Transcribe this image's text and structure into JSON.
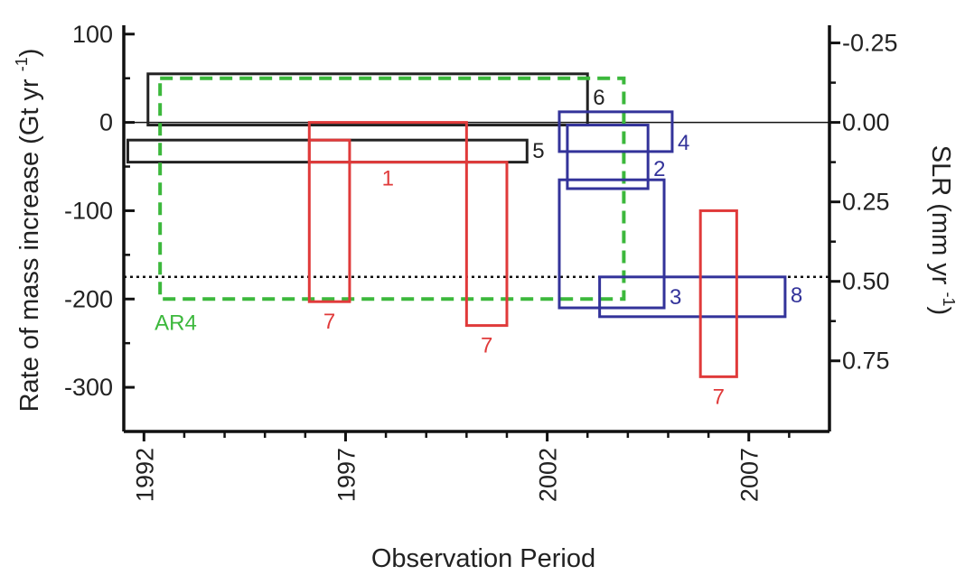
{
  "chart_data": {
    "type": "box",
    "xlabel": "Observation Period",
    "ylabel_left": "Rate of mass increase (Gt yr -1)",
    "ylabel_right": "SLR (mm yr -1)",
    "xlim": [
      1991.5,
      2009
    ],
    "ylim": [
      -350,
      110
    ],
    "x_ticks": [
      {
        "value": 1992,
        "label": "1992"
      },
      {
        "value": 1997,
        "label": "1997"
      },
      {
        "value": 2002,
        "label": "2002"
      },
      {
        "value": 2007,
        "label": "2007"
      }
    ],
    "y_ticks_left": [
      {
        "value": 100,
        "label": "100"
      },
      {
        "value": 0,
        "label": "0"
      },
      {
        "value": -100,
        "label": "-100"
      },
      {
        "value": -200,
        "label": "-200"
      },
      {
        "value": -300,
        "label": "-300"
      }
    ],
    "y_ticks_right": [
      {
        "value": 90,
        "label": "-0.25"
      },
      {
        "value": 0,
        "label": "0.00"
      },
      {
        "value": -90,
        "label": "0.25"
      },
      {
        "value": -180,
        "label": "0.50"
      },
      {
        "value": -270,
        "label": "0.75"
      }
    ],
    "reference_lines": [
      {
        "y": 0,
        "style": "solid"
      },
      {
        "y": -175,
        "style": "dotted"
      }
    ],
    "colors": {
      "black": "#222222",
      "red": "#e03a3a",
      "blue": "#33339a",
      "green": "#3cb83c"
    },
    "boxes": [
      {
        "id": "6",
        "label": "6",
        "color": "black",
        "x0": 1992.1,
        "x1": 2003.0,
        "y0": 55,
        "y1": -3,
        "label_side": "right"
      },
      {
        "id": "5",
        "label": "5",
        "color": "black",
        "x0": 1991.6,
        "x1": 2001.5,
        "y0": -20,
        "y1": -45,
        "label_side": "right"
      },
      {
        "id": "AR4",
        "label": "AR4",
        "color": "green",
        "dashed": true,
        "x0": 1992.4,
        "x1": 2003.9,
        "y0": 50,
        "y1": -200,
        "label_side": "below-left"
      },
      {
        "id": "1",
        "label": "1",
        "color": "red",
        "x0": 1996.1,
        "x1": 2000.0,
        "y0": 0,
        "y1": -45,
        "label_side": "below-center"
      },
      {
        "id": "7a",
        "label": "7",
        "color": "red",
        "x0": 1996.1,
        "x1": 1997.1,
        "y0": -20,
        "y1": -203,
        "label_side": "below"
      },
      {
        "id": "7b",
        "label": "7",
        "color": "red",
        "x0": 2000.0,
        "x1": 2001.0,
        "y0": -45,
        "y1": -230,
        "label_side": "below"
      },
      {
        "id": "4",
        "label": "4",
        "color": "blue",
        "x0": 2002.3,
        "x1": 2005.1,
        "y0": 12,
        "y1": -33,
        "label_side": "right"
      },
      {
        "id": "2",
        "label": "2",
        "color": "blue",
        "x0": 2002.5,
        "x1": 2004.5,
        "y0": -3,
        "y1": -75,
        "label_side": "right"
      },
      {
        "id": "3",
        "label": "3",
        "color": "blue",
        "x0": 2002.3,
        "x1": 2004.9,
        "y0": -65,
        "y1": -210,
        "label_side": "right"
      },
      {
        "id": "8",
        "label": "8",
        "color": "blue",
        "x0": 2003.3,
        "x1": 2007.9,
        "y0": -175,
        "y1": -220,
        "label_side": "right"
      },
      {
        "id": "7c",
        "label": "7",
        "color": "red",
        "x0": 2005.8,
        "x1": 2006.7,
        "y0": -100,
        "y1": -288,
        "label_side": "below"
      }
    ]
  }
}
